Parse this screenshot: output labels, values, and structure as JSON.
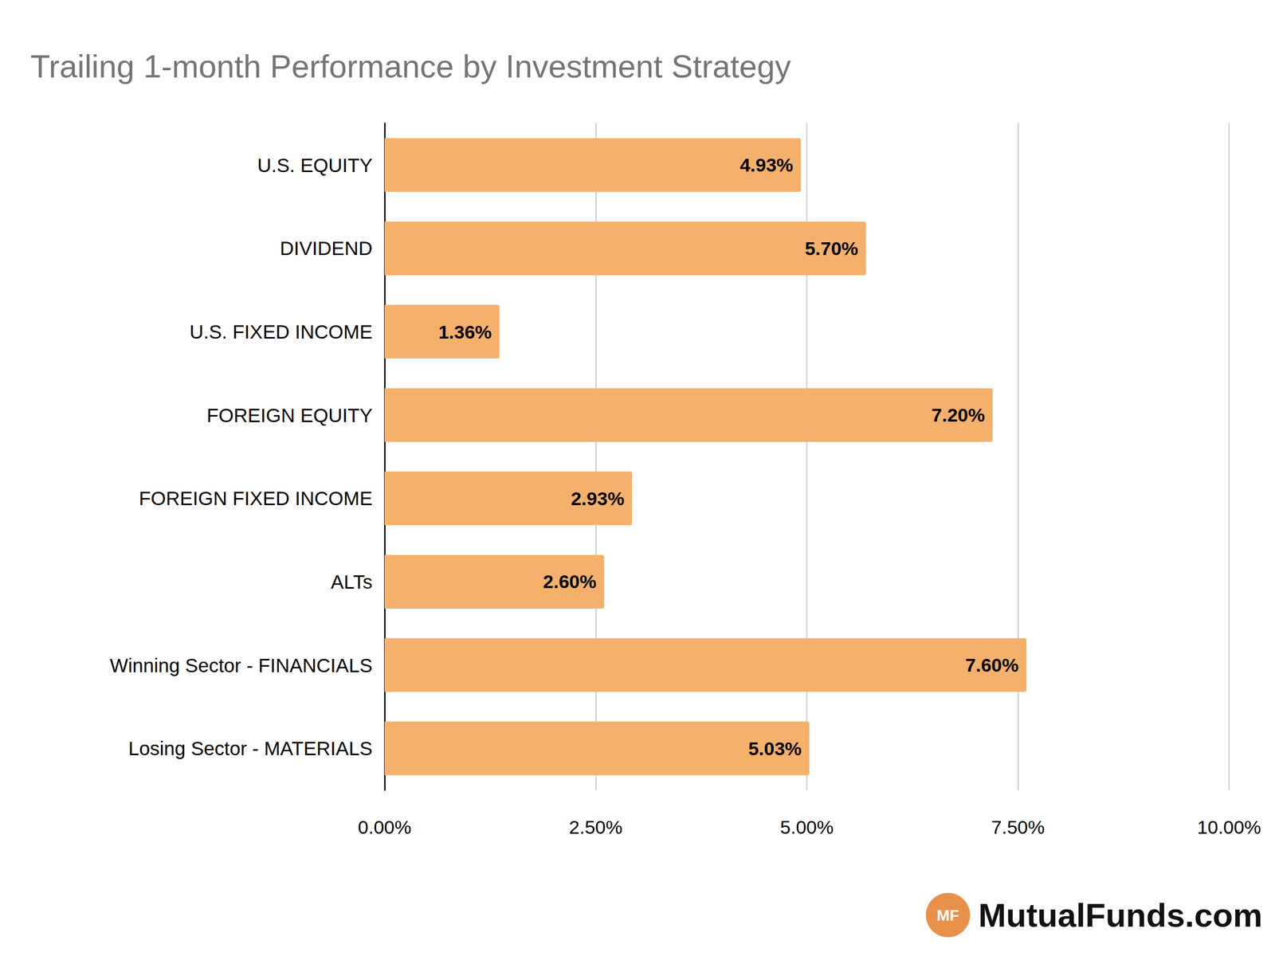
{
  "chart_data": {
    "type": "bar",
    "title": "Trailing 1-month Performance by Investment Strategy",
    "orientation": "horizontal",
    "categories": [
      "U.S. EQUITY",
      "DIVIDEND",
      "U.S. FIXED INCOME",
      "FOREIGN EQUITY",
      "FOREIGN FIXED INCOME",
      "ALTs",
      "Winning Sector - FINANCIALS",
      "Losing Sector - MATERIALS"
    ],
    "values": [
      4.93,
      5.7,
      1.36,
      7.2,
      2.93,
      2.6,
      7.6,
      5.03
    ],
    "value_labels": [
      "4.93%",
      "5.70%",
      "1.36%",
      "7.20%",
      "2.93%",
      "2.60%",
      "7.60%",
      "5.03%"
    ],
    "data_labels": true,
    "color": "#f5b06b",
    "xlim": [
      0,
      10
    ],
    "xticks": [
      {
        "value": 0,
        "label": "0.00%"
      },
      {
        "value": 2.5,
        "label": "2.50%"
      },
      {
        "value": 5,
        "label": "5.00%"
      },
      {
        "value": 7.5,
        "label": "7.50%"
      },
      {
        "value": 10,
        "label": "10.00%"
      }
    ],
    "grid": true,
    "annotations": [
      "MF",
      "MutualFunds.com"
    ]
  }
}
